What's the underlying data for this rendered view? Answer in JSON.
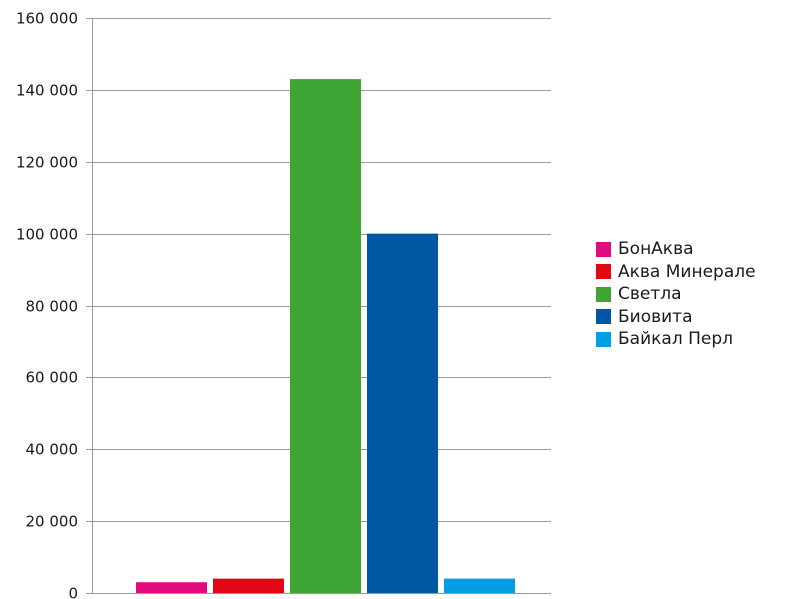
{
  "chart_data": {
    "type": "bar",
    "title": "",
    "xlabel": "",
    "ylabel": "",
    "ylim": [
      0,
      160000
    ],
    "yticks": [
      0,
      20000,
      40000,
      60000,
      80000,
      100000,
      120000,
      140000,
      160000
    ],
    "ytick_labels": [
      "0",
      "20 000",
      "40 000",
      "60 000",
      "80 000",
      "100 000",
      "120 000",
      "140 000",
      "160 000"
    ],
    "grid": true,
    "legend_position": "right",
    "series": [
      {
        "name": "БонАква",
        "value": 3000,
        "color": "#e5097f"
      },
      {
        "name": "Аква Минерале",
        "value": 4000,
        "color": "#e30613"
      },
      {
        "name": "Светла",
        "value": 143000,
        "color": "#3fa535"
      },
      {
        "name": "Биовита",
        "value": 100000,
        "color": "#0057a4"
      },
      {
        "name": "Байкал Перл",
        "value": 4000,
        "color": "#009fe3"
      }
    ]
  }
}
